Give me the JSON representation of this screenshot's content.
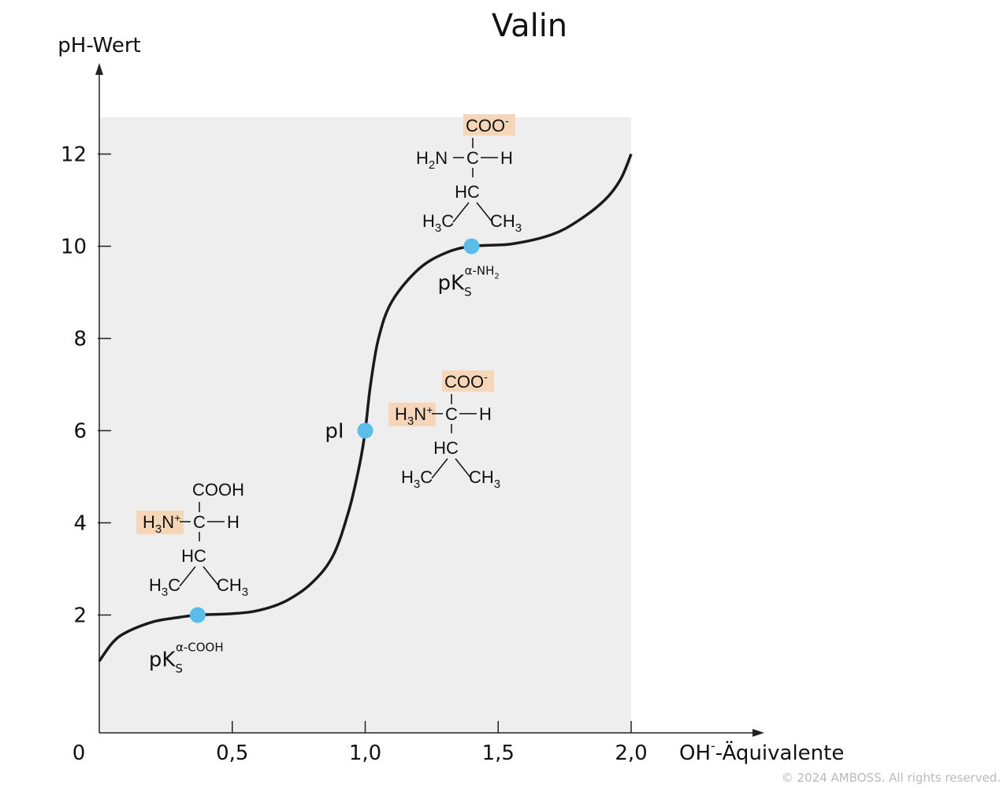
{
  "chart_data": {
    "type": "line",
    "title": "Valin",
    "ylabel": "pH-Wert",
    "xlabel_main": "OH",
    "xlabel_sup": "-",
    "xlabel_rest": "-Äquivalente",
    "origin_label": "0",
    "xlim": [
      0,
      2.0
    ],
    "ylim": [
      0,
      12.8
    ],
    "x_ticks": [
      {
        "value": 0.5,
        "label": "0,5"
      },
      {
        "value": 1.0,
        "label": "1,0"
      },
      {
        "value": 1.5,
        "label": "1,5"
      },
      {
        "value": 2.0,
        "label": "2,0"
      }
    ],
    "y_ticks": [
      {
        "value": 2,
        "label": "2"
      },
      {
        "value": 4,
        "label": "4"
      },
      {
        "value": 6,
        "label": "6"
      },
      {
        "value": 8,
        "label": "8"
      },
      {
        "value": 10,
        "label": "10"
      },
      {
        "value": 12,
        "label": "12"
      }
    ],
    "series": [
      {
        "values": [
          [
            0,
            1.0
          ],
          [
            0.05,
            1.4
          ],
          [
            0.1,
            1.62
          ],
          [
            0.2,
            1.85
          ],
          [
            0.3,
            1.95
          ],
          [
            0.37,
            2.0
          ],
          [
            0.5,
            2.03
          ],
          [
            0.6,
            2.1
          ],
          [
            0.7,
            2.3
          ],
          [
            0.8,
            2.7
          ],
          [
            0.88,
            3.3
          ],
          [
            0.94,
            4.3
          ],
          [
            0.98,
            5.3
          ],
          [
            1.0,
            6.0
          ],
          [
            1.02,
            7.0
          ],
          [
            1.05,
            8.0
          ],
          [
            1.1,
            8.8
          ],
          [
            1.2,
            9.5
          ],
          [
            1.3,
            9.85
          ],
          [
            1.4,
            10.0
          ],
          [
            1.55,
            10.05
          ],
          [
            1.7,
            10.25
          ],
          [
            1.8,
            10.55
          ],
          [
            1.9,
            11.0
          ],
          [
            1.96,
            11.45
          ],
          [
            2.0,
            12.0
          ]
        ]
      }
    ],
    "points": [
      {
        "x": 0.37,
        "y": 2,
        "label_main": "pK",
        "label_sub": "S",
        "label_sup": "α-COOH",
        "label_sup_sub": ""
      },
      {
        "x": 1.0,
        "y": 6,
        "label_main": "pI",
        "label_sub": "",
        "label_sup": "",
        "label_sup_sub": ""
      },
      {
        "x": 1.4,
        "y": 10,
        "label_main": "pK",
        "label_sub": "S",
        "label_sup": "α-NH",
        "label_sup_sub": "2"
      }
    ],
    "colors": {
      "curve": "#1a1a1a",
      "point": "#5bbde8",
      "plot_area": "#eeeeee",
      "highlight": "#f5d6b8"
    },
    "structures": {
      "low_ph": {
        "top": "COOH",
        "left": "H3N+",
        "left_main": "H",
        "left_sub": "3",
        "left_tail": "N",
        "left_sup": "+",
        "center": "C",
        "right": "H",
        "mid": "HC",
        "bl_main": "H",
        "bl_sub": "3",
        "bl_tail": "C",
        "br_main": "CH",
        "br_sub": "3"
      },
      "pi": {
        "top": "COO-",
        "top_main": "COO",
        "top_sup": "-",
        "left_main": "H",
        "left_sub": "3",
        "left_tail": "N",
        "left_sup": "+",
        "center": "C",
        "right": "H",
        "mid": "HC",
        "bl_main": "H",
        "bl_sub": "3",
        "bl_tail": "C",
        "br_main": "CH",
        "br_sub": "3"
      },
      "high_ph": {
        "top_main": "COO",
        "top_sup": "-",
        "left_main": "H",
        "left_sub": "2",
        "left_tail": "N",
        "center": "C",
        "right": "H",
        "mid": "HC",
        "bl_main": "H",
        "bl_sub": "3",
        "bl_tail": "C",
        "br_main": "CH",
        "br_sub": "3"
      }
    }
  },
  "footer": {
    "copyright": "© 2024 AMBOSS. All rights reserved."
  }
}
